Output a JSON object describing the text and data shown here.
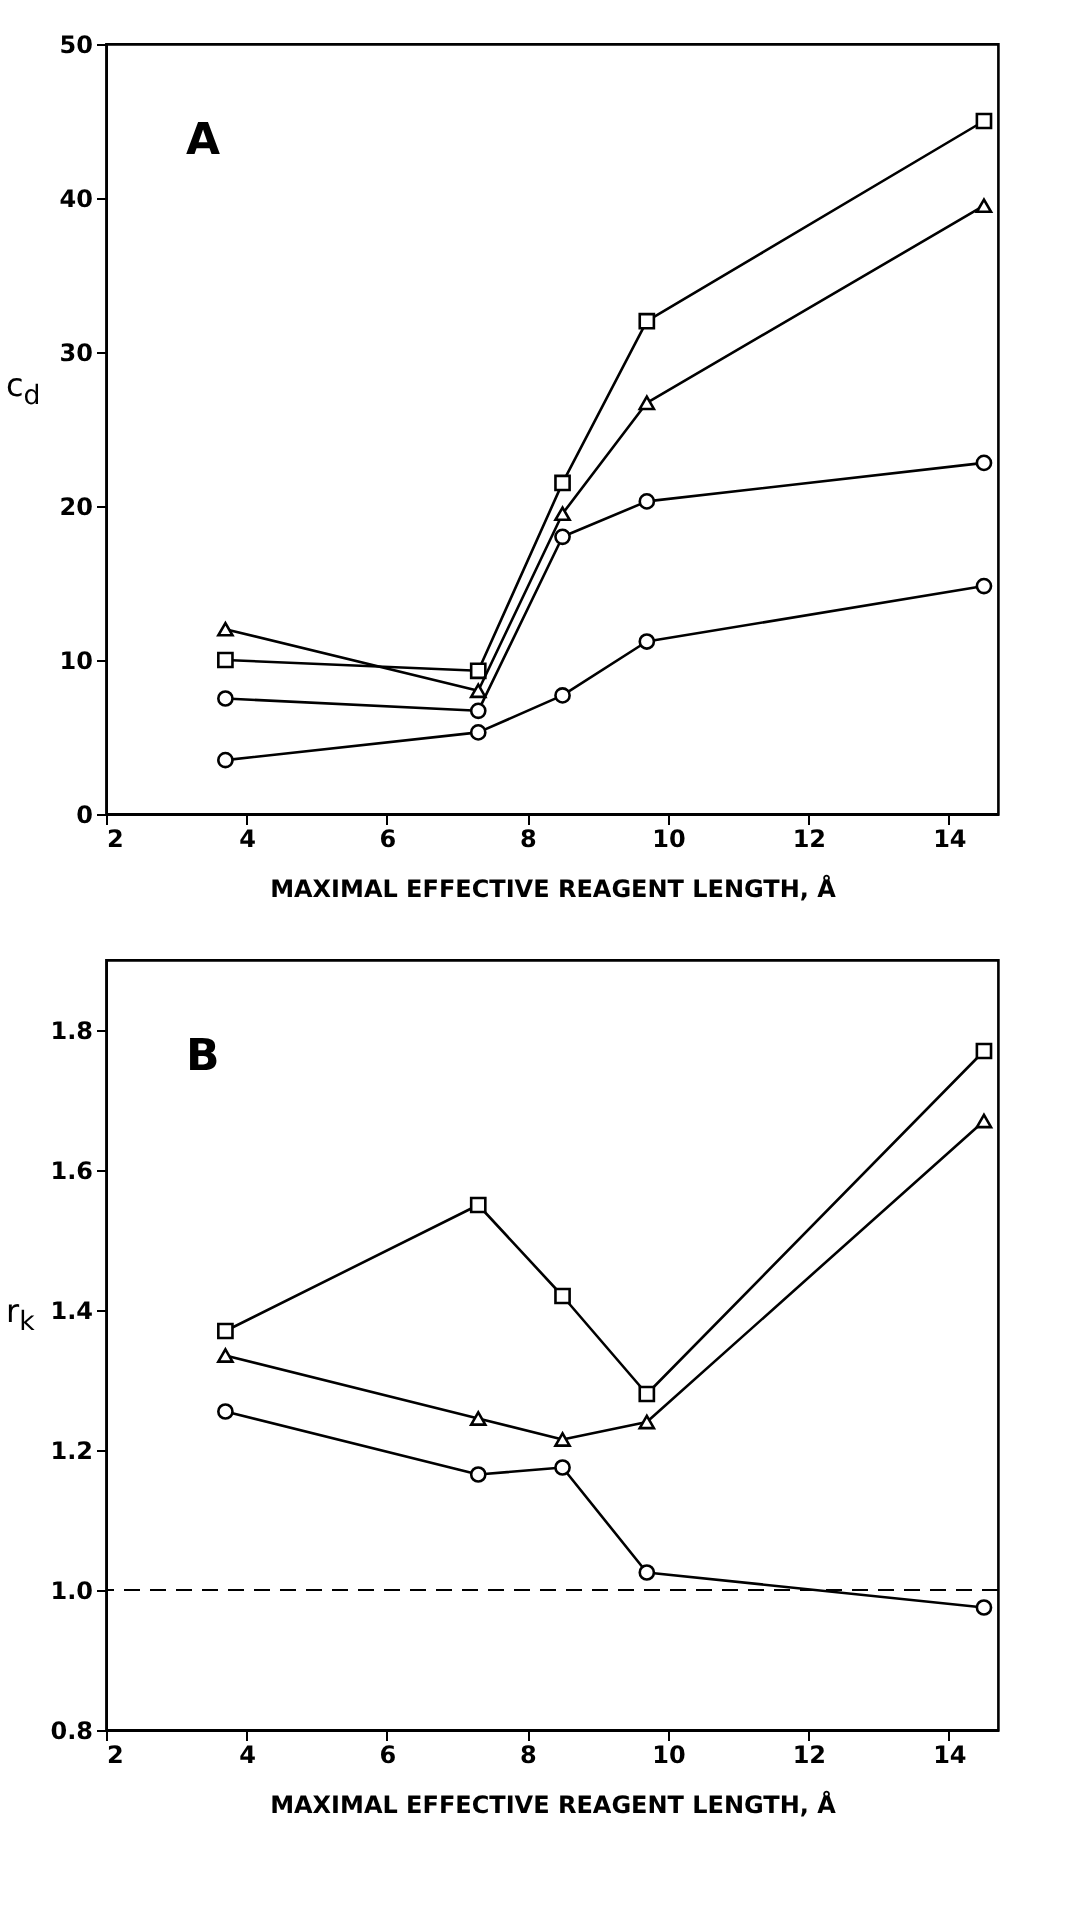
{
  "chart_data": [
    {
      "type": "line",
      "annotations": [
        "A"
      ],
      "xlabel": "MAXIMAL EFFECTIVE REAGENT LENGTH, Å",
      "ylabel": "c$_{d}$",
      "x": [
        3.7,
        7.3,
        8.5,
        9.7,
        14.5
      ],
      "series": [
        {
          "color": "#000000",
          "marker": "square",
          "values": [
            10,
            9.3,
            21.5,
            32,
            45
          ]
        },
        {
          "color": "#000000",
          "marker": "triangle",
          "values": [
            12,
            8,
            19.5,
            26.7,
            39.5
          ]
        },
        {
          "color": "#000000",
          "marker": "circle",
          "values": [
            7.5,
            6.7,
            18,
            20.3,
            22.8
          ]
        },
        {
          "color": "#000000",
          "marker": "circle",
          "values": [
            3.5,
            5.3,
            7.7,
            11.2,
            14.8
          ]
        }
      ],
      "xlim": [
        2,
        14.7
      ],
      "xticks": [
        2,
        4,
        6,
        8,
        10,
        12,
        14
      ],
      "ylim": [
        0,
        50
      ],
      "yticks": [
        0,
        10,
        20,
        30,
        40,
        50
      ],
      "grid": false
    },
    {
      "type": "line",
      "annotations": [
        "B"
      ],
      "xlabel": "MAXIMAL EFFECTIVE REAGENT LENGTH, Å",
      "ylabel": "r$_{k}$",
      "x": [
        3.7,
        7.3,
        8.5,
        9.7,
        14.5
      ],
      "series": [
        {
          "color": "#000000",
          "marker": "square",
          "values": [
            1.37,
            1.55,
            1.42,
            1.28,
            1.77
          ]
        },
        {
          "color": "#000000",
          "marker": "triangle",
          "values": [
            1.335,
            1.245,
            1.215,
            1.24,
            1.67
          ]
        },
        {
          "color": "#000000",
          "marker": "circle",
          "values": [
            1.255,
            1.165,
            1.175,
            1.025,
            0.975
          ]
        }
      ],
      "ref_lines": [
        {
          "axis": "y",
          "value": 1.0,
          "line_style": "dashed"
        }
      ],
      "xlim": [
        2,
        14.7
      ],
      "xticks": [
        2,
        4,
        6,
        8,
        10,
        12,
        14
      ],
      "ylim": [
        0.8,
        1.9
      ],
      "yticks": [
        0.8,
        {
          "value": 1.0,
          "label": "1.0"
        },
        1.2,
        1.4,
        1.6,
        1.8
      ],
      "grid": false
    }
  ]
}
